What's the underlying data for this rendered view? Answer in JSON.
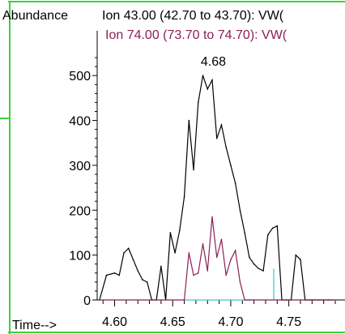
{
  "chart_data": {
    "type": "line",
    "ylabel": "Abundance",
    "xlabel": "Time-->",
    "xlim": [
      4.585,
      4.79
    ],
    "ylim": [
      0,
      560
    ],
    "x_ticks": [
      4.6,
      4.65,
      4.7,
      4.75
    ],
    "x_tick_labels": [
      "4.60",
      "4.65",
      "4.70",
      "4.75"
    ],
    "y_ticks": [
      0,
      100,
      200,
      300,
      400,
      500
    ],
    "y_tick_labels": [
      "0",
      "100",
      "200",
      "300",
      "400",
      "500"
    ],
    "peak_label": "4.68",
    "peak_x": 4.685,
    "peak_y": 500,
    "series": [
      {
        "name": "Ion  43.00 (42.70 to 43.70): VW(",
        "color": "#000000",
        "x": [
          4.587,
          4.593,
          4.6,
          4.604,
          4.608,
          4.612,
          4.616,
          4.62,
          4.624,
          4.628,
          4.632,
          4.636,
          4.64,
          4.644,
          4.648,
          4.652,
          4.656,
          4.66,
          4.664,
          4.668,
          4.672,
          4.676,
          4.68,
          4.684,
          4.688,
          4.692,
          4.696,
          4.7,
          4.704,
          4.708,
          4.712,
          4.716,
          4.72,
          4.724,
          4.728,
          4.732,
          4.736,
          4.74,
          4.744,
          4.748,
          4.752,
          4.756,
          4.76,
          4.764,
          4.768,
          4.772,
          4.776,
          4.78,
          4.784,
          4.788
        ],
        "values": [
          0,
          55,
          60,
          55,
          105,
          115,
          90,
          65,
          45,
          40,
          0,
          0,
          75,
          0,
          150,
          105,
          155,
          230,
          400,
          290,
          440,
          500,
          470,
          490,
          360,
          390,
          340,
          300,
          260,
          200,
          150,
          95,
          80,
          70,
          65,
          145,
          160,
          165,
          0,
          0,
          0,
          100,
          90,
          0,
          0,
          0,
          0,
          0,
          0,
          0
        ]
      },
      {
        "name": "Ion  74.00 (73.70 to 74.70): VW(",
        "color": "#8b1f55",
        "x": [
          4.587,
          4.66,
          4.664,
          4.668,
          4.672,
          4.676,
          4.68,
          4.684,
          4.688,
          4.692,
          4.696,
          4.7,
          4.704,
          4.708,
          4.712,
          4.716,
          4.72,
          4.74,
          4.76,
          4.79
        ],
        "values": [
          0,
          0,
          105,
          55,
          60,
          125,
          65,
          185,
          95,
          135,
          55,
          90,
          110,
          40,
          0,
          0,
          0,
          0,
          0,
          0
        ]
      }
    ],
    "baseline_segments": [
      {
        "x": [
          4.66,
          4.72
        ],
        "y": 0,
        "color": "#37c9c9"
      },
      {
        "x": [
          4.737,
          4.737
        ],
        "y": [
          0,
          70
        ],
        "color": "#37c9c9"
      }
    ]
  }
}
